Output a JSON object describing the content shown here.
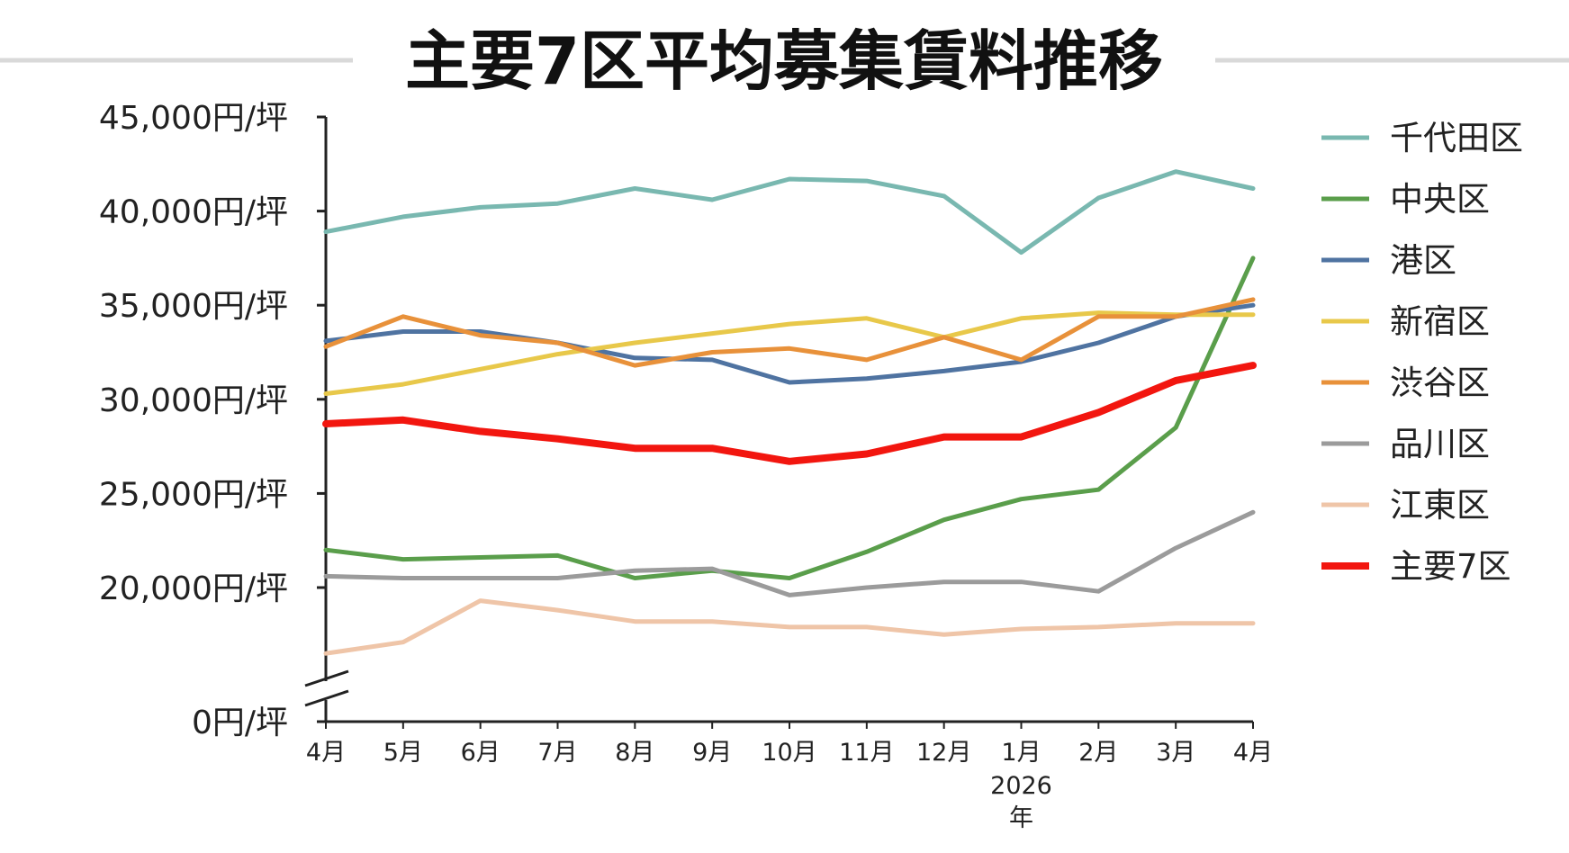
{
  "chart_data": {
    "type": "line",
    "title": "主要7区平均募集賃料推移",
    "xlabel": "",
    "ylabel": "",
    "categories": [
      "4月",
      "5月",
      "6月",
      "7月",
      "8月",
      "9月",
      "10月",
      "11月",
      "12月",
      "1月",
      "2月",
      "3月",
      "4月"
    ],
    "year_label": [
      "2026",
      "年"
    ],
    "year_label_index": 9,
    "y_ticks": [
      {
        "value": 0,
        "label": "0円/坪"
      },
      {
        "value": 20000,
        "label": "20,000円/坪"
      },
      {
        "value": 25000,
        "label": "25,000円/坪"
      },
      {
        "value": 30000,
        "label": "30,000円/坪"
      },
      {
        "value": 35000,
        "label": "35,000円/坪"
      },
      {
        "value": 40000,
        "label": "40,000円/坪"
      },
      {
        "value": 45000,
        "label": "45,000円/坪"
      }
    ],
    "axis_break": {
      "between": [
        0,
        20000
      ],
      "lower_segment_value": 16000
    },
    "ylim": [
      16000,
      45000
    ],
    "grid": false,
    "legend_position": "right",
    "series": [
      {
        "name": "千代田区",
        "color": "#79B8B0",
        "width": 5,
        "values": [
          38900,
          39700,
          40200,
          40400,
          41200,
          40600,
          41700,
          41600,
          40800,
          37800,
          40700,
          42100,
          41200
        ]
      },
      {
        "name": "中央区",
        "color": "#5A9E4B",
        "width": 5,
        "values": [
          22000,
          21500,
          21600,
          21700,
          20500,
          20900,
          20500,
          21900,
          23600,
          24700,
          25200,
          28500,
          37500
        ]
      },
      {
        "name": "港区",
        "color": "#4F73A1",
        "width": 5,
        "values": [
          33100,
          33600,
          33600,
          33000,
          32200,
          32100,
          30900,
          31100,
          31500,
          32000,
          33000,
          34400,
          35000
        ]
      },
      {
        "name": "新宿区",
        "color": "#E8C84A",
        "width": 5,
        "values": [
          30300,
          30800,
          31600,
          32400,
          33000,
          33500,
          34000,
          34300,
          33300,
          34300,
          34600,
          34500,
          34500
        ]
      },
      {
        "name": "渋谷区",
        "color": "#E8913A",
        "width": 5,
        "values": [
          32800,
          34400,
          33400,
          33000,
          31800,
          32500,
          32700,
          32100,
          33300,
          32100,
          34400,
          34400,
          35300
        ]
      },
      {
        "name": "品川区",
        "color": "#9B9B9B",
        "width": 5,
        "values": [
          20600,
          20500,
          20500,
          20500,
          20900,
          21000,
          19600,
          20000,
          20300,
          20300,
          19800,
          22100,
          24000
        ]
      },
      {
        "name": "江東区",
        "color": "#EFC5A8",
        "width": 5,
        "values": [
          16500,
          17100,
          19300,
          18800,
          18200,
          18200,
          17900,
          17900,
          17500,
          17800,
          17900,
          18100,
          18100
        ]
      },
      {
        "name": "主要7区",
        "color": "#F2160F",
        "width": 8,
        "values": [
          28700,
          28900,
          28300,
          27900,
          27400,
          27400,
          26700,
          27100,
          28000,
          28000,
          29300,
          31000,
          31800
        ]
      }
    ]
  }
}
